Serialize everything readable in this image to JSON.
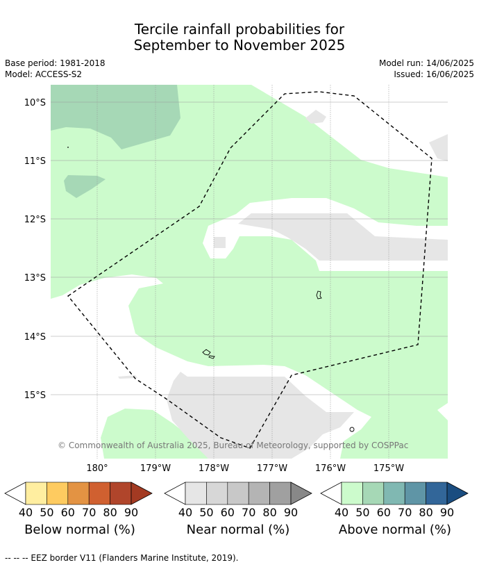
{
  "title_line1": "Tercile rainfall probabilities for",
  "title_line2": "September to November 2025",
  "meta": {
    "base_period": "Base period: 1981-2018",
    "model": "Model: ACCESS-S2",
    "model_run": "Model run: 14/06/2025",
    "issued": "Issued: 16/06/2025"
  },
  "map": {
    "lat_labels": [
      "10°S",
      "11°S",
      "12°S",
      "13°S",
      "14°S",
      "15°S"
    ],
    "lon_labels": [
      "180°",
      "179°W",
      "178°W",
      "177°W",
      "176°W",
      "175°W"
    ],
    "credit": "© Commonwealth of Australia 2025, Bureau of Meteorology, supported by COSPPac"
  },
  "legend": {
    "ticks": [
      "40",
      "50",
      "60",
      "70",
      "80",
      "90"
    ],
    "below": {
      "label": "Below normal (%)",
      "colors": [
        "#ffeea0",
        "#fecb60",
        "#e39343",
        "#d06030",
        "#b0452b",
        "#a33a22"
      ]
    },
    "near": {
      "label": "Near normal (%)",
      "colors": [
        "#e6e6e6",
        "#d7d7d7",
        "#c8c8c8",
        "#b4b4b4",
        "#a0a0a0",
        "#888888"
      ]
    },
    "above": {
      "label": "Above normal (%)",
      "colors": [
        "#ccfbcc",
        "#a6d8b6",
        "#80b8b2",
        "#5f95a6",
        "#326699",
        "#1a4d80"
      ]
    }
  },
  "footer": "--  --  -- EEZ border V11 (Flanders Marine Institute, 2019)."
}
